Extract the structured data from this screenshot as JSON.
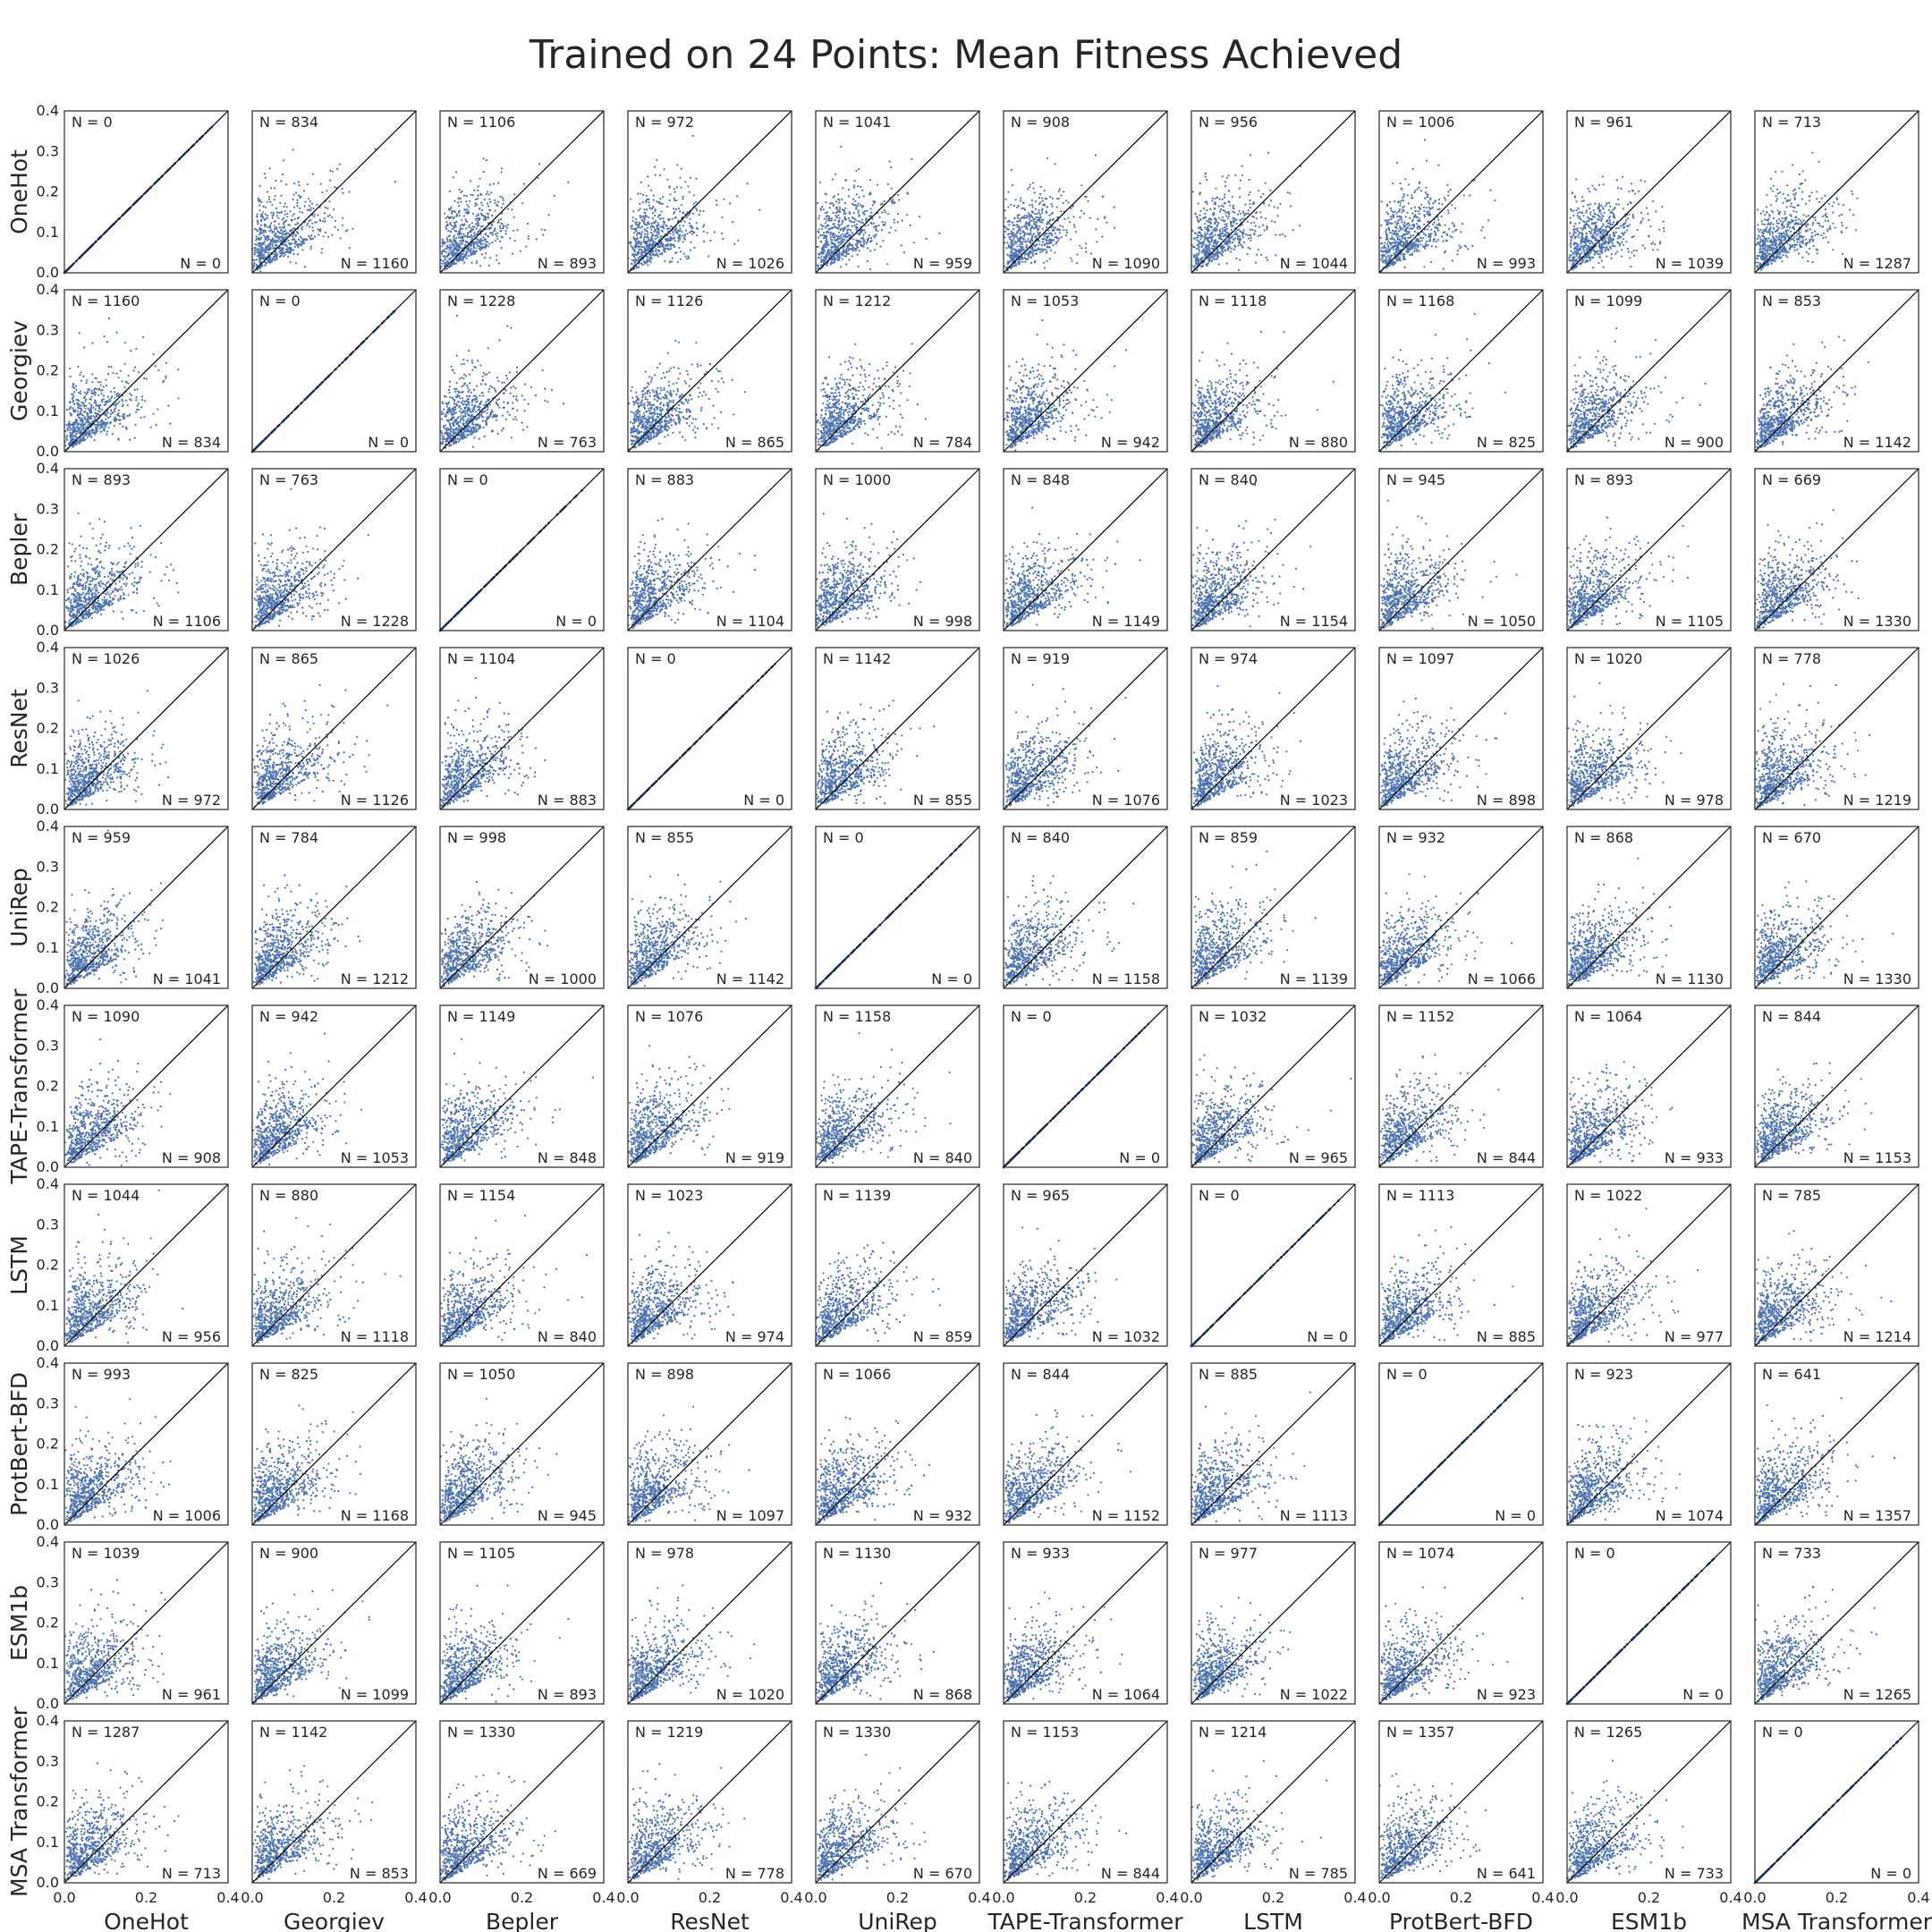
{
  "title": "Trained on 24 Points: Mean Fitness Achieved",
  "chart_data": {
    "type": "scatter",
    "title": "Trained on 24 Points: Mean Fitness Achieved",
    "models": [
      "OneHot",
      "Georgiev",
      "Bepler",
      "ResNet",
      "UniRep",
      "TAPE-Transformer",
      "LSTM",
      "ProtBert-BFD",
      "ESM1b",
      "MSA Transformer"
    ],
    "xlim": [
      0.0,
      0.4
    ],
    "ylim": [
      0.0,
      0.4
    ],
    "xticks": [
      "0.0",
      "0.2",
      "0.4"
    ],
    "yticks": [
      "0.0",
      "0.1",
      "0.2",
      "0.3",
      "0.4"
    ],
    "point_color": "#4c72b0",
    "diagonal_color": "#000000",
    "grid": false,
    "n_label_prefix": "N = ",
    "n_counts": [
      [
        0,
        834,
        1106,
        972,
        1041,
        908,
        956,
        1006,
        961,
        713
      ],
      [
        1160,
        0,
        1228,
        1126,
        1212,
        1053,
        1118,
        1168,
        1099,
        853
      ],
      [
        893,
        763,
        0,
        883,
        1000,
        848,
        840,
        945,
        893,
        669
      ],
      [
        1026,
        865,
        1104,
        0,
        1142,
        919,
        974,
        1097,
        1020,
        778
      ],
      [
        959,
        784,
        998,
        855,
        0,
        840,
        859,
        932,
        868,
        670
      ],
      [
        1090,
        942,
        1149,
        1076,
        1158,
        0,
        1032,
        1152,
        1064,
        844
      ],
      [
        1044,
        880,
        1154,
        1023,
        1139,
        965,
        0,
        1113,
        1022,
        785
      ],
      [
        993,
        825,
        1050,
        898,
        1066,
        844,
        885,
        0,
        923,
        641
      ],
      [
        1039,
        900,
        1105,
        978,
        1130,
        933,
        977,
        1074,
        0,
        733
      ],
      [
        1287,
        1142,
        1330,
        1219,
        1330,
        1153,
        1214,
        1357,
        1265,
        0
      ]
    ]
  }
}
